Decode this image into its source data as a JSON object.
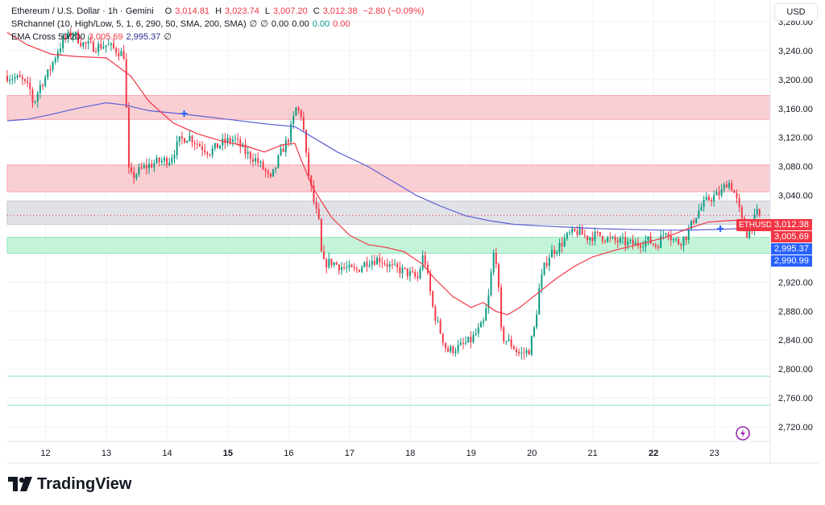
{
  "legend": {
    "symbol": "Ethereum / U.S. Dollar · 1h · Gemini",
    "open_label": "O",
    "open": "3,014.81",
    "high_label": "H",
    "high": "3,023.74",
    "low_label": "L",
    "low": "3,007.20",
    "close_label": "C",
    "close": "3,012.38",
    "change": "−2.80 (−0.09%)",
    "sr_label": "SRchannel (10, High/Low, 5, 1, 6, 290, 50, SMA, 200, SMA)",
    "sr_phi1": "∅",
    "sr_phi2": "∅",
    "sr_v1": "0.00",
    "sr_v2": "0.00",
    "sr_v3": "0.00",
    "sr_v4": "0.00",
    "ema_label": "EMA Cross 50/200",
    "ema_fast": "3,005.69",
    "ema_slow": "2,995.37",
    "ema_phi": "∅"
  },
  "currency": "USD",
  "ticker": "ETHUSD",
  "price_tags": [
    {
      "name": "last-price-tag",
      "value": "3,012.38",
      "num": 3012.38,
      "color": "#f23645"
    },
    {
      "name": "ema-fast-tag",
      "value": "3,005.69",
      "num": 3005.69,
      "color": "#f23645"
    },
    {
      "name": "ema-slow-tag",
      "value": "2,995.37",
      "num": 2995.37,
      "color": "#2962ff"
    },
    {
      "name": "support-tag",
      "value": "2,990.99",
      "num": 2990.99,
      "color": "#2962ff"
    }
  ],
  "brand": "TradingView",
  "colors": {
    "up": "#089981",
    "down": "#f23645",
    "ema_fast": "#f23645",
    "ema_slow": "#5b5fd6",
    "resistance_zone": "#f8c7cb",
    "neutral_zone": "#dcdde3",
    "support_zone": "#b9f2d4"
  },
  "chart_data": {
    "type": "candlestick",
    "y_axis": {
      "min": 2700,
      "max": 3310,
      "position": "right",
      "ticks": [
        2720,
        2760,
        2800,
        2840,
        2880,
        2920,
        3040,
        3080,
        3120,
        3160,
        3200,
        3240,
        3280
      ],
      "tick_labels": [
        "2,720.00",
        "2,760.00",
        "2,800.00",
        "2,840.00",
        "2,880.00",
        "2,920.00",
        "3,040.00",
        "3,080.00",
        "3,120.00",
        "3,160.00",
        "3,200.00",
        "3,240.00",
        "3,280.00"
      ]
    },
    "x_axis": {
      "ticks": [
        {
          "label": "12",
          "t": 11.5,
          "bold": false
        },
        {
          "label": "13",
          "t": 12.5,
          "bold": false
        },
        {
          "label": "14",
          "t": 13.5,
          "bold": false
        },
        {
          "label": "15",
          "t": 14.5,
          "bold": true
        },
        {
          "label": "16",
          "t": 15.5,
          "bold": false
        },
        {
          "label": "17",
          "t": 16.5,
          "bold": false
        },
        {
          "label": "18",
          "t": 17.5,
          "bold": false
        },
        {
          "label": "19",
          "t": 18.5,
          "bold": false
        },
        {
          "label": "20",
          "t": 19.5,
          "bold": false
        },
        {
          "label": "21",
          "t": 20.5,
          "bold": false
        },
        {
          "label": "22",
          "t": 21.5,
          "bold": true
        },
        {
          "label": "23",
          "t": 22.5,
          "bold": false
        }
      ],
      "t_min": 10.87,
      "t_max": 23.42
    },
    "zones": [
      {
        "name": "resistance-zone-upper",
        "from": 3145,
        "to": 3178,
        "kind": "resistance"
      },
      {
        "name": "resistance-zone-lower",
        "from": 3045,
        "to": 3082,
        "kind": "resistance"
      },
      {
        "name": "neutral-zone",
        "from": 3000,
        "to": 3032,
        "kind": "neutral"
      },
      {
        "name": "support-zone",
        "from": 2960,
        "to": 2982,
        "kind": "support"
      }
    ],
    "levels": [
      {
        "name": "support-line-2790",
        "price": 2790
      },
      {
        "name": "support-line-2750",
        "price": 2750
      }
    ],
    "ema_fast_path": [
      [
        10.87,
        3265
      ],
      [
        11.2,
        3248
      ],
      [
        11.6,
        3235
      ],
      [
        12.0,
        3232
      ],
      [
        12.5,
        3230
      ],
      [
        12.9,
        3205
      ],
      [
        13.2,
        3170
      ],
      [
        13.6,
        3140
      ],
      [
        14.0,
        3125
      ],
      [
        14.4,
        3115
      ],
      [
        14.8,
        3108
      ],
      [
        15.1,
        3100
      ],
      [
        15.4,
        3110
      ],
      [
        15.6,
        3112
      ],
      [
        15.7,
        3090
      ],
      [
        15.9,
        3050
      ],
      [
        16.2,
        3010
      ],
      [
        16.5,
        2985
      ],
      [
        16.8,
        2972
      ],
      [
        17.1,
        2968
      ],
      [
        17.4,
        2962
      ],
      [
        17.7,
        2945
      ],
      [
        17.9,
        2925
      ],
      [
        18.2,
        2900
      ],
      [
        18.5,
        2885
      ],
      [
        18.7,
        2892
      ],
      [
        18.9,
        2880
      ],
      [
        19.1,
        2875
      ],
      [
        19.3,
        2885
      ],
      [
        19.6,
        2905
      ],
      [
        19.9,
        2925
      ],
      [
        20.2,
        2942
      ],
      [
        20.5,
        2955
      ],
      [
        20.9,
        2965
      ],
      [
        21.3,
        2973
      ],
      [
        21.7,
        2982
      ],
      [
        22.1,
        2995
      ],
      [
        22.4,
        3003
      ],
      [
        22.7,
        3005
      ],
      [
        23.0,
        3006
      ],
      [
        23.25,
        3005.69
      ]
    ],
    "ema_slow_path": [
      [
        10.87,
        3143
      ],
      [
        11.2,
        3145
      ],
      [
        11.6,
        3152
      ],
      [
        12.0,
        3160
      ],
      [
        12.5,
        3168
      ],
      [
        12.8,
        3165
      ],
      [
        13.2,
        3157
      ],
      [
        13.8,
        3152
      ],
      [
        14.5,
        3145
      ],
      [
        15.2,
        3138
      ],
      [
        15.6,
        3135
      ],
      [
        15.9,
        3120
      ],
      [
        16.3,
        3100
      ],
      [
        16.8,
        3080
      ],
      [
        17.2,
        3060
      ],
      [
        17.6,
        3040
      ],
      [
        18.0,
        3025
      ],
      [
        18.4,
        3012
      ],
      [
        18.8,
        3005
      ],
      [
        19.2,
        3000
      ],
      [
        19.6,
        2998
      ],
      [
        20.1,
        2996
      ],
      [
        20.6,
        2994
      ],
      [
        21.1,
        2993
      ],
      [
        21.6,
        2992
      ],
      [
        22.1,
        2992
      ],
      [
        22.6,
        2993
      ],
      [
        22.9,
        2994
      ],
      [
        23.25,
        2995.37
      ]
    ],
    "ema_cross_marks": [
      [
        13.78,
        3153
      ],
      [
        22.6,
        2994
      ]
    ],
    "last_price": 3012.38,
    "price_anchors": [
      [
        10.87,
        3205
      ],
      [
        11.1,
        3200
      ],
      [
        11.25,
        3185
      ],
      [
        11.3,
        3165
      ],
      [
        11.4,
        3190
      ],
      [
        11.55,
        3210
      ],
      [
        11.7,
        3240
      ],
      [
        11.8,
        3255
      ],
      [
        11.95,
        3265
      ],
      [
        12.1,
        3250
      ],
      [
        12.3,
        3245
      ],
      [
        12.5,
        3248
      ],
      [
        12.72,
        3238
      ],
      [
        12.8,
        3233
      ],
      [
        12.86,
        3075
      ],
      [
        12.92,
        3065
      ],
      [
        13.1,
        3078
      ],
      [
        13.3,
        3085
      ],
      [
        13.55,
        3090
      ],
      [
        13.7,
        3115
      ],
      [
        13.85,
        3122
      ],
      [
        14.05,
        3108
      ],
      [
        14.2,
        3100
      ],
      [
        14.4,
        3112
      ],
      [
        14.6,
        3118
      ],
      [
        14.8,
        3098
      ],
      [
        14.95,
        3090
      ],
      [
        15.1,
        3075
      ],
      [
        15.2,
        3060
      ],
      [
        15.35,
        3095
      ],
      [
        15.5,
        3120
      ],
      [
        15.62,
        3160
      ],
      [
        15.72,
        3150
      ],
      [
        15.8,
        3082
      ],
      [
        15.9,
        3035
      ],
      [
        16.0,
        3000
      ],
      [
        16.05,
        2945
      ],
      [
        16.2,
        2948
      ],
      [
        16.4,
        2940
      ],
      [
        16.6,
        2935
      ],
      [
        16.8,
        2950
      ],
      [
        17.0,
        2952
      ],
      [
        17.2,
        2940
      ],
      [
        17.4,
        2935
      ],
      [
        17.62,
        2925
      ],
      [
        17.72,
        2960
      ],
      [
        17.8,
        2920
      ],
      [
        17.88,
        2880
      ],
      [
        17.98,
        2855
      ],
      [
        18.1,
        2825
      ],
      [
        18.3,
        2830
      ],
      [
        18.5,
        2840
      ],
      [
        18.7,
        2862
      ],
      [
        18.8,
        2905
      ],
      [
        18.86,
        2960
      ],
      [
        18.92,
        2950
      ],
      [
        19.0,
        2845
      ],
      [
        19.15,
        2835
      ],
      [
        19.3,
        2820
      ],
      [
        19.45,
        2825
      ],
      [
        19.55,
        2860
      ],
      [
        19.62,
        2910
      ],
      [
        19.7,
        2940
      ],
      [
        19.8,
        2960
      ],
      [
        19.95,
        2970
      ],
      [
        20.1,
        2985
      ],
      [
        20.25,
        2990
      ],
      [
        20.4,
        2982
      ],
      [
        20.6,
        2985
      ],
      [
        20.8,
        2978
      ],
      [
        21.0,
        2975
      ],
      [
        21.2,
        2972
      ],
      [
        21.4,
        2978
      ],
      [
        21.55,
        2970
      ],
      [
        21.65,
        2985
      ],
      [
        21.72,
        2995
      ],
      [
        21.8,
        2980
      ],
      [
        21.92,
        2975
      ],
      [
        22.05,
        2985
      ],
      [
        22.15,
        3005
      ],
      [
        22.25,
        3020
      ],
      [
        22.4,
        3035
      ],
      [
        22.55,
        3040
      ],
      [
        22.62,
        3045
      ],
      [
        22.72,
        3060
      ],
      [
        22.8,
        3050
      ],
      [
        22.88,
        3030
      ],
      [
        22.95,
        3005
      ],
      [
        23.02,
        2985
      ],
      [
        23.1,
        2995
      ],
      [
        23.2,
        3015
      ],
      [
        23.27,
        3012.38
      ]
    ]
  }
}
